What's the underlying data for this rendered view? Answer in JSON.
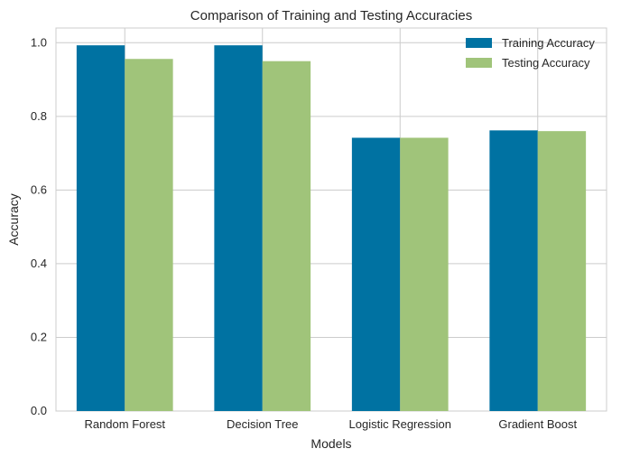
{
  "chart_data": {
    "type": "bar",
    "title": "Comparison of Training and Testing Accuracies",
    "xlabel": "Models",
    "ylabel": "Accuracy",
    "categories": [
      "Random Forest",
      "Decision Tree",
      "Logistic Regression",
      "Gradient Boost"
    ],
    "series": [
      {
        "name": "Training Accuracy",
        "values": [
          0.993,
          0.993,
          0.742,
          0.762
        ],
        "color": "#0072a2"
      },
      {
        "name": "Testing Accuracy",
        "values": [
          0.956,
          0.95,
          0.742,
          0.76
        ],
        "color": "#a0c47a"
      }
    ],
    "ylim": [
      0,
      1.04
    ],
    "yticks": [
      "0.0",
      "0.2",
      "0.4",
      "0.6",
      "0.8",
      "1.0"
    ],
    "grid": true,
    "legend_position": "top-right"
  }
}
